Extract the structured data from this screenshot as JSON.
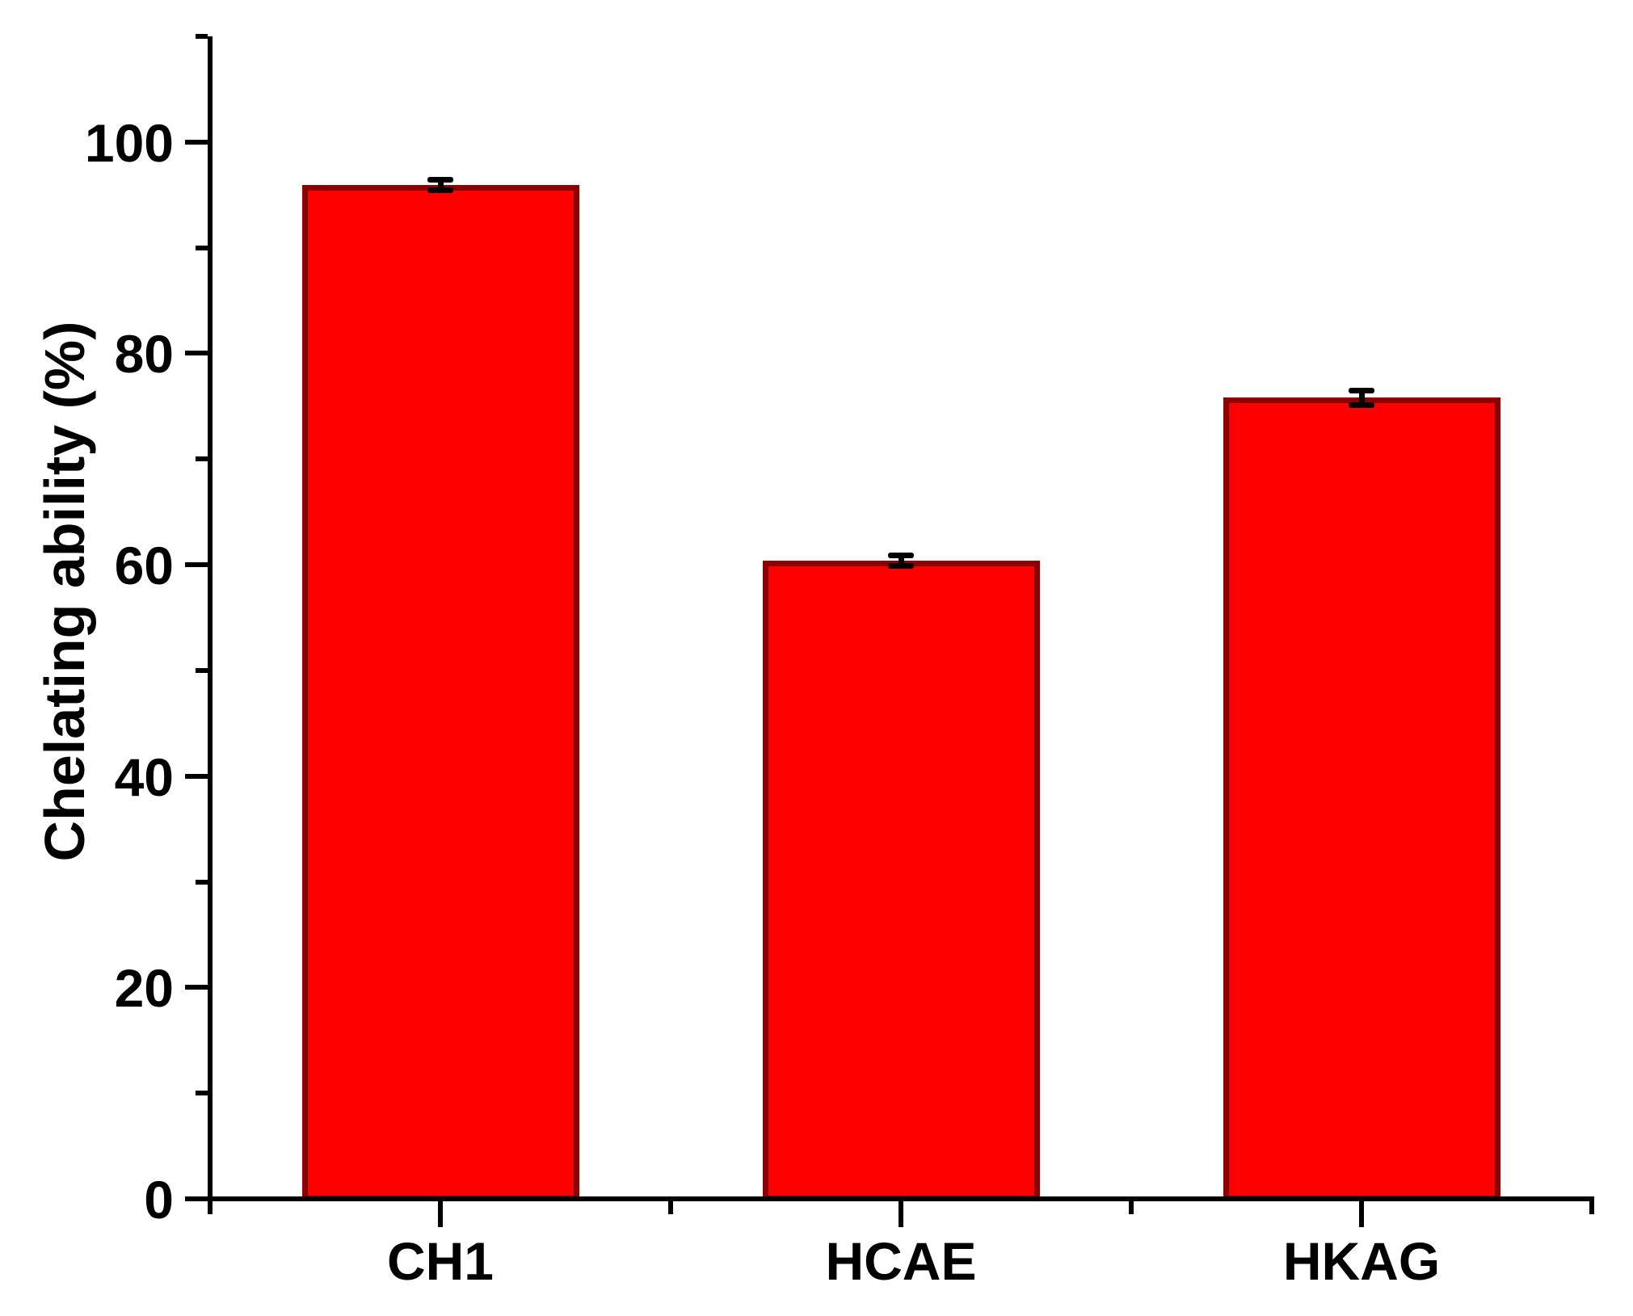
{
  "figure": {
    "background": "#FFFFFF"
  },
  "chart_data": {
    "type": "bar",
    "categories": [
      "CH1",
      "HCAE",
      "HKAG"
    ],
    "values": [
      95.9,
      60.4,
      75.8
    ],
    "errors": [
      0.5,
      0.5,
      0.7
    ],
    "title": "",
    "xlabel": "",
    "ylabel": "Chelating ability (%)",
    "ylim": [
      0,
      110
    ],
    "yticks_major": [
      0,
      20,
      40,
      60,
      80,
      100
    ],
    "yticks_minor": [
      10,
      30,
      50,
      70,
      90,
      110
    ],
    "grid": false,
    "legend": false,
    "bar_fill_color": "#FF0000",
    "bar_border_color": "#8B0000",
    "axis_color": "#000000",
    "error_bar_color": "#000000",
    "text_color": "#000000"
  }
}
